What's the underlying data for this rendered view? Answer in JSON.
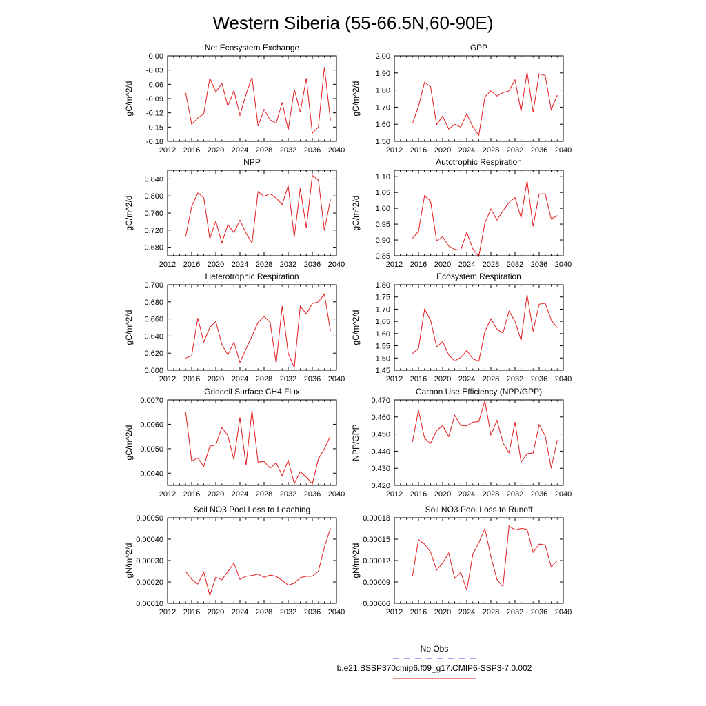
{
  "title": "Western Siberia (55-66.5N,60-90E)",
  "legend": {
    "entries": [
      {
        "label": "No Obs",
        "color": "#4a4ae8",
        "style": "dashed"
      },
      {
        "label": "b.e21.BSSP370cmip6.f09_g17.CMIP6-SSP3-7.0.002",
        "color": "#e31a1c",
        "style": "solid"
      }
    ]
  },
  "chart_data": [
    {
      "type": "line",
      "title": "Net Ecosystem Exchange",
      "ylabel": "gC/m^2/d",
      "xlim": [
        2012,
        2040
      ],
      "xticks": [
        "2012",
        "2016",
        "2020",
        "2024",
        "2028",
        "2032",
        "2036",
        "2040"
      ],
      "ylim": [
        -0.18,
        0.0
      ],
      "yticks": [
        "0.00",
        "-0.03",
        "-0.06",
        "-0.09",
        "-0.12",
        "-0.15",
        "-0.18"
      ],
      "color": "#e31a1c",
      "x": [
        2015,
        2016,
        2017,
        2018,
        2019,
        2020,
        2021,
        2022,
        2023,
        2024,
        2025,
        2026,
        2027,
        2028,
        2029,
        2030,
        2031,
        2032,
        2033,
        2034,
        2035,
        2036,
        2037,
        2038,
        2039
      ],
      "values": [
        -0.078,
        -0.144,
        -0.131,
        -0.122,
        -0.047,
        -0.076,
        -0.058,
        -0.106,
        -0.073,
        -0.125,
        -0.081,
        -0.045,
        -0.148,
        -0.113,
        -0.135,
        -0.142,
        -0.098,
        -0.156,
        -0.07,
        -0.119,
        -0.047,
        -0.163,
        -0.15,
        -0.024,
        -0.136
      ]
    },
    {
      "type": "line",
      "title": "GPP",
      "ylabel": "gC/m^2/d",
      "xlim": [
        2012,
        2040
      ],
      "xticks": [
        "2012",
        "2016",
        "2020",
        "2024",
        "2028",
        "2032",
        "2036",
        "2040"
      ],
      "ylim": [
        1.5,
        2.0
      ],
      "yticks": [
        "2.00",
        "1.90",
        "1.80",
        "1.70",
        "1.60",
        "1.50"
      ],
      "color": "#e31a1c",
      "x": [
        2015,
        2016,
        2017,
        2018,
        2019,
        2020,
        2021,
        2022,
        2023,
        2024,
        2025,
        2026,
        2027,
        2028,
        2029,
        2030,
        2031,
        2032,
        2033,
        2034,
        2035,
        2036,
        2037,
        2038,
        2039
      ],
      "values": [
        1.605,
        1.705,
        1.845,
        1.82,
        1.597,
        1.648,
        1.572,
        1.6,
        1.583,
        1.662,
        1.585,
        1.535,
        1.76,
        1.795,
        1.765,
        1.785,
        1.795,
        1.86,
        1.675,
        1.905,
        1.67,
        1.895,
        1.885,
        1.685,
        1.77
      ]
    },
    {
      "type": "line",
      "title": "NPP",
      "ylabel": "gC/m^2/d",
      "xlim": [
        2012,
        2040
      ],
      "xticks": [
        "2012",
        "2016",
        "2020",
        "2024",
        "2028",
        "2032",
        "2036",
        "2040"
      ],
      "ylim": [
        0.66,
        0.86
      ],
      "yticks": [
        "0.840",
        "0.800",
        "0.760",
        "0.720",
        "0.680"
      ],
      "color": "#e31a1c",
      "x": [
        2015,
        2016,
        2017,
        2018,
        2019,
        2020,
        2021,
        2022,
        2023,
        2024,
        2025,
        2026,
        2027,
        2028,
        2029,
        2030,
        2031,
        2032,
        2033,
        2034,
        2035,
        2036,
        2037,
        2038,
        2039
      ],
      "values": [
        0.705,
        0.775,
        0.807,
        0.796,
        0.7,
        0.741,
        0.69,
        0.733,
        0.714,
        0.743,
        0.713,
        0.69,
        0.81,
        0.799,
        0.805,
        0.795,
        0.78,
        0.824,
        0.703,
        0.818,
        0.725,
        0.848,
        0.837,
        0.719,
        0.792
      ]
    },
    {
      "type": "line",
      "title": "Autotrophic Respiration",
      "ylabel": "gC/m^2/d",
      "xlim": [
        2012,
        2040
      ],
      "xticks": [
        "2012",
        "2016",
        "2020",
        "2024",
        "2028",
        "2032",
        "2036",
        "2040"
      ],
      "ylim": [
        0.85,
        1.12
      ],
      "yticks": [
        "1.10",
        "1.05",
        "1.00",
        "0.95",
        "0.90",
        "0.85"
      ],
      "color": "#e31a1c",
      "x": [
        2015,
        2016,
        2017,
        2018,
        2019,
        2020,
        2021,
        2022,
        2023,
        2024,
        2025,
        2026,
        2027,
        2028,
        2029,
        2030,
        2031,
        2032,
        2033,
        2034,
        2035,
        2036,
        2037,
        2038,
        2039
      ],
      "values": [
        0.905,
        0.927,
        1.04,
        1.022,
        0.897,
        0.91,
        0.881,
        0.87,
        0.868,
        0.924,
        0.872,
        0.848,
        0.953,
        0.998,
        0.963,
        0.992,
        1.018,
        1.034,
        0.97,
        1.087,
        0.943,
        1.045,
        1.046,
        0.966,
        0.977
      ]
    },
    {
      "type": "line",
      "title": "Heterotrophic Respiration",
      "ylabel": "gC/m^2/d",
      "xlim": [
        2012,
        2040
      ],
      "xticks": [
        "2012",
        "2016",
        "2020",
        "2024",
        "2028",
        "2032",
        "2036",
        "2040"
      ],
      "ylim": [
        0.6,
        0.7
      ],
      "yticks": [
        "0.700",
        "0.680",
        "0.660",
        "0.640",
        "0.620",
        "0.600"
      ],
      "color": "#e31a1c",
      "x": [
        2015,
        2016,
        2017,
        2018,
        2019,
        2020,
        2021,
        2022,
        2023,
        2024,
        2025,
        2026,
        2027,
        2028,
        2029,
        2030,
        2031,
        2032,
        2033,
        2034,
        2035,
        2036,
        2037,
        2038,
        2039
      ],
      "values": [
        0.614,
        0.617,
        0.661,
        0.633,
        0.65,
        0.657,
        0.63,
        0.618,
        0.633,
        0.609,
        0.625,
        0.64,
        0.656,
        0.663,
        0.656,
        0.608,
        0.675,
        0.62,
        0.603,
        0.675,
        0.666,
        0.678,
        0.68,
        0.689,
        0.646
      ]
    },
    {
      "type": "line",
      "title": "Ecosystem Respiration",
      "ylabel": "gC/m^2/d",
      "xlim": [
        2012,
        2040
      ],
      "xticks": [
        "2012",
        "2016",
        "2020",
        "2024",
        "2028",
        "2032",
        "2036",
        "2040"
      ],
      "ylim": [
        1.45,
        1.8
      ],
      "yticks": [
        "1.80",
        "1.75",
        "1.70",
        "1.65",
        "1.60",
        "1.55",
        "1.50",
        "1.45"
      ],
      "color": "#e31a1c",
      "x": [
        2015,
        2016,
        2017,
        2018,
        2019,
        2020,
        2021,
        2022,
        2023,
        2024,
        2025,
        2026,
        2027,
        2028,
        2029,
        2030,
        2031,
        2032,
        2033,
        2034,
        2035,
        2036,
        2037,
        2038,
        2039
      ],
      "values": [
        1.518,
        1.54,
        1.7,
        1.655,
        1.545,
        1.567,
        1.513,
        1.488,
        1.502,
        1.531,
        1.497,
        1.487,
        1.608,
        1.661,
        1.618,
        1.602,
        1.692,
        1.65,
        1.572,
        1.76,
        1.609,
        1.72,
        1.724,
        1.656,
        1.624
      ]
    },
    {
      "type": "line",
      "title": "Gridcell Surface CH4 Flux",
      "ylabel": "gC/m^2/d",
      "xlim": [
        2012,
        2040
      ],
      "xticks": [
        "2012",
        "2016",
        "2020",
        "2024",
        "2028",
        "2032",
        "2036",
        "2040"
      ],
      "ylim": [
        0.0035,
        0.007
      ],
      "yticks": [
        "0.0070",
        "0.0060",
        "0.0050",
        "0.0040"
      ],
      "color": "#e31a1c",
      "x": [
        2015,
        2016,
        2017,
        2018,
        2019,
        2020,
        2021,
        2022,
        2023,
        2024,
        2025,
        2026,
        2027,
        2028,
        2029,
        2030,
        2031,
        2032,
        2033,
        2034,
        2035,
        2036,
        2037,
        2038,
        2039
      ],
      "values": [
        0.0065,
        0.0045,
        0.00462,
        0.00428,
        0.0051,
        0.00515,
        0.00587,
        0.00553,
        0.00455,
        0.00628,
        0.00432,
        0.00657,
        0.00445,
        0.00448,
        0.0042,
        0.00443,
        0.0039,
        0.00452,
        0.00358,
        0.00406,
        0.00384,
        0.00356,
        0.00458,
        0.005,
        0.00553
      ]
    },
    {
      "type": "line",
      "title": "Carbon Use Efficiency (NPP/GPP)",
      "ylabel": "NPP/GPP",
      "xlim": [
        2012,
        2040
      ],
      "xticks": [
        "2012",
        "2016",
        "2020",
        "2024",
        "2028",
        "2032",
        "2036",
        "2040"
      ],
      "ylim": [
        0.42,
        0.47
      ],
      "yticks": [
        "0.470",
        "0.460",
        "0.450",
        "0.440",
        "0.430",
        "0.420"
      ],
      "color": "#e31a1c",
      "x": [
        2015,
        2016,
        2017,
        2018,
        2019,
        2020,
        2021,
        2022,
        2023,
        2024,
        2025,
        2026,
        2027,
        2028,
        2029,
        2030,
        2031,
        2032,
        2033,
        2034,
        2035,
        2036,
        2037,
        2038,
        2039
      ],
      "values": [
        0.4455,
        0.464,
        0.4475,
        0.4445,
        0.452,
        0.455,
        0.4485,
        0.461,
        0.455,
        0.4548,
        0.457,
        0.4573,
        0.4695,
        0.4495,
        0.458,
        0.445,
        0.439,
        0.457,
        0.4336,
        0.4385,
        0.439,
        0.4555,
        0.449,
        0.43,
        0.4465
      ]
    },
    {
      "type": "line",
      "title": "Soil NO3 Pool Loss to Leaching",
      "ylabel": "gN/m^2/d",
      "xlim": [
        2012,
        2040
      ],
      "xticks": [
        "2012",
        "2016",
        "2020",
        "2024",
        "2028",
        "2032",
        "2036",
        "2040"
      ],
      "ylim": [
        0.0001,
        0.0005
      ],
      "yticks": [
        "0.00050",
        "0.00040",
        "0.00030",
        "0.00020",
        "0.00010"
      ],
      "color": "#e31a1c",
      "x": [
        2015,
        2016,
        2017,
        2018,
        2019,
        2020,
        2021,
        2022,
        2023,
        2024,
        2025,
        2026,
        2027,
        2028,
        2029,
        2030,
        2031,
        2032,
        2033,
        2034,
        2035,
        2036,
        2037,
        2038,
        2039
      ],
      "values": [
        0.000248,
        0.000212,
        0.00019,
        0.000246,
        0.000136,
        0.000222,
        0.00021,
        0.000248,
        0.000288,
        0.000212,
        0.000226,
        0.00023,
        0.000236,
        0.000222,
        0.000232,
        0.000226,
        0.000207,
        0.000185,
        0.000194,
        0.00022,
        0.000226,
        0.000226,
        0.00025,
        0.000362,
        0.000452
      ]
    },
    {
      "type": "line",
      "title": "Soil NO3 Pool Loss to Runoff",
      "ylabel": "gN/m^2/d",
      "xlim": [
        2012,
        2040
      ],
      "xticks": [
        "2012",
        "2016",
        "2020",
        "2024",
        "2028",
        "2032",
        "2036",
        "2040"
      ],
      "ylim": [
        6e-05,
        0.00018
      ],
      "yticks": [
        "0.00018",
        "0.00015",
        "0.00012",
        "0.00009",
        "0.00006"
      ],
      "color": "#e31a1c",
      "x": [
        2015,
        2016,
        2017,
        2018,
        2019,
        2020,
        2021,
        2022,
        2023,
        2024,
        2025,
        2026,
        2027,
        2028,
        2029,
        2030,
        2031,
        2032,
        2033,
        2034,
        2035,
        2036,
        2037,
        2038,
        2039
      ],
      "values": [
        9.85e-05,
        0.0001495,
        0.000143,
        0.000132,
        0.0001065,
        0.0001165,
        0.0001305,
        9.5e-05,
        0.0001035,
        7.8e-05,
        0.000129,
        0.000145,
        0.000165,
        0.0001255,
        9.35e-05,
        8.35e-05,
        0.0001685,
        0.000163,
        0.000165,
        0.000164,
        0.0001315,
        0.000143,
        0.000142,
        0.000111,
        0.00012
      ]
    }
  ]
}
